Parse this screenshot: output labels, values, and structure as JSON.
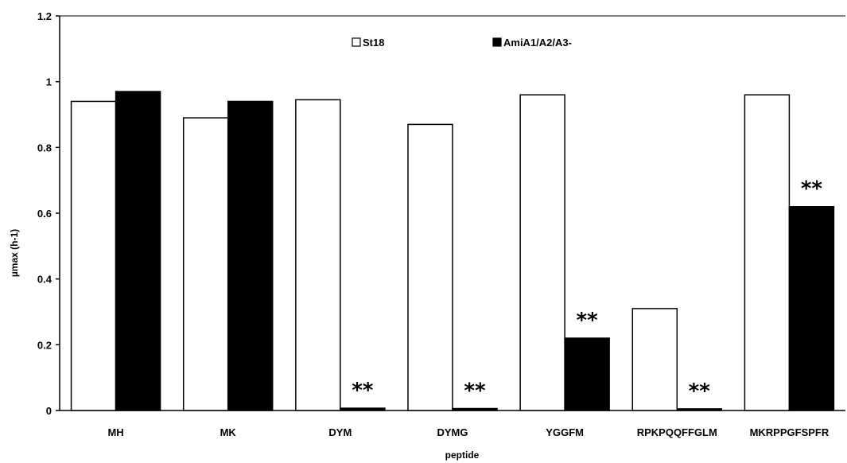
{
  "chart_data": {
    "type": "bar",
    "xlabel": "peptide",
    "ylabel": "µmax (h-1)",
    "ylim": [
      0,
      1.2
    ],
    "yticks": [
      "0",
      "0.2",
      "0.4",
      "0.6",
      "0.8",
      "1",
      "1.2"
    ],
    "categories": [
      "MH",
      "MK",
      "DYM",
      "DYMG",
      "YGGFM",
      "RPKPQQFFGLM",
      "MKRPPGFSPFR"
    ],
    "series": [
      {
        "name": "St18",
        "values": [
          0.94,
          0.89,
          0.945,
          0.87,
          0.96,
          0.31,
          0.96
        ],
        "color": "#ffffff"
      },
      {
        "name": "AmiA1/A2/A3-",
        "values": [
          0.97,
          0.94,
          0.007,
          0.006,
          0.22,
          0.005,
          0.62
        ],
        "color": "#000000"
      }
    ],
    "annotations": [
      "**",
      "**",
      "**",
      "**",
      "**"
    ],
    "annotation_categories": [
      "DYM",
      "DYMG",
      "YGGFM",
      "RPKPQQFFGLM",
      "MKRPPGFSPFR"
    ],
    "legend_position": "top-center",
    "grid": false
  }
}
